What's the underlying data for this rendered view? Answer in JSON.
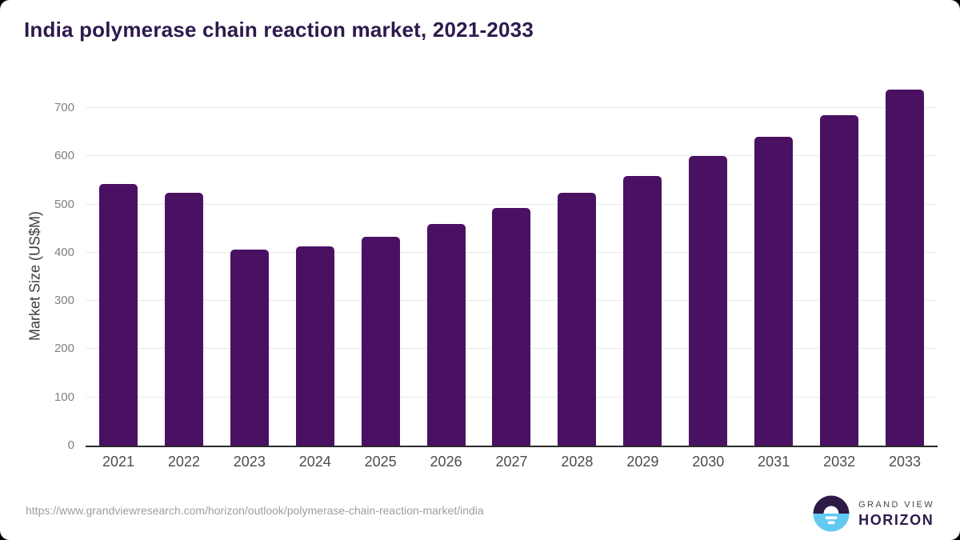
{
  "page": {
    "title": "India polymerase chain reaction market, 2021-2033",
    "source_url": "https://www.grandviewresearch.com/horizon/outlook/polymerase-chain-reaction-market/india"
  },
  "logo": {
    "line1": "GRAND VIEW",
    "line2": "HORIZON",
    "mark": "horizon-sunrise-icon"
  },
  "colors": {
    "bar": "#4a1162",
    "title_text": "#2e1a4d",
    "gridline": "#e9e9e9",
    "axis_line": "#2b2b2b",
    "y_tick_text": "#808080",
    "x_tick_text": "#4c4c4c",
    "url_text": "#9e9e9e",
    "logo_blue": "#62c9f2",
    "logo_dark": "#2e1a47"
  },
  "chart_data": {
    "type": "bar",
    "title": "India polymerase chain reaction market, 2021-2033",
    "xlabel": "",
    "ylabel": "Market Size (US$M)",
    "categories": [
      "2021",
      "2022",
      "2023",
      "2024",
      "2025",
      "2026",
      "2027",
      "2028",
      "2029",
      "2030",
      "2031",
      "2032",
      "2033"
    ],
    "values": [
      543,
      525,
      407,
      413,
      433,
      460,
      492,
      525,
      560,
      600,
      641,
      686,
      738
    ],
    "ylim": [
      0,
      750
    ],
    "yticks": [
      0,
      100,
      200,
      300,
      400,
      500,
      600,
      700
    ],
    "grid": true,
    "legend": false,
    "bar_color": "#4a1162"
  }
}
